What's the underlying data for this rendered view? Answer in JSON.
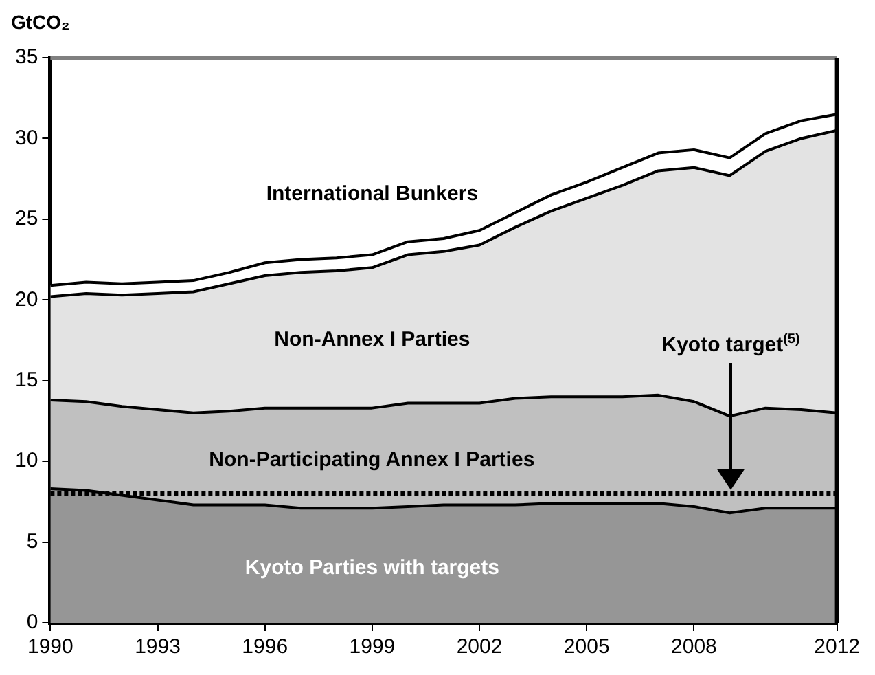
{
  "chart_data": {
    "type": "area",
    "stacked": true,
    "ylabel": "GtCO₂",
    "x": [
      1990,
      1991,
      1992,
      1993,
      1994,
      1995,
      1996,
      1997,
      1998,
      1999,
      2000,
      2001,
      2002,
      2003,
      2004,
      2005,
      2006,
      2007,
      2008,
      2009,
      2010,
      2011,
      2012
    ],
    "xlim": [
      1990,
      2012
    ],
    "xticks": [
      1990,
      1993,
      1996,
      1999,
      2002,
      2005,
      2008,
      2012
    ],
    "ylim": [
      0,
      35
    ],
    "yticks": [
      0,
      5,
      10,
      15,
      20,
      25,
      30,
      35
    ],
    "grid": false,
    "legend": false,
    "marker": "none",
    "series": [
      {
        "name": "Kyoto Parties with targets",
        "color": "#969696",
        "values": [
          8.3,
          8.2,
          7.9,
          7.6,
          7.3,
          7.3,
          7.3,
          7.1,
          7.1,
          7.1,
          7.2,
          7.3,
          7.3,
          7.3,
          7.4,
          7.4,
          7.4,
          7.4,
          7.2,
          6.8,
          7.1,
          7.1,
          7.1
        ]
      },
      {
        "name": "Non-Participating Annex I Parties",
        "color": "#c0c0c0",
        "values": [
          5.5,
          5.5,
          5.5,
          5.6,
          5.7,
          5.8,
          6.0,
          6.2,
          6.2,
          6.2,
          6.4,
          6.3,
          6.3,
          6.6,
          6.6,
          6.6,
          6.6,
          6.7,
          6.5,
          6.0,
          6.2,
          6.1,
          5.9
        ]
      },
      {
        "name": "Non-Annex I Parties",
        "color": "#e3e3e3",
        "values": [
          6.4,
          6.7,
          6.9,
          7.2,
          7.5,
          7.9,
          8.2,
          8.4,
          8.5,
          8.7,
          9.2,
          9.4,
          9.8,
          10.6,
          11.5,
          12.3,
          13.1,
          13.9,
          14.5,
          14.9,
          15.9,
          16.8,
          17.5
        ]
      },
      {
        "name": "International Bunkers",
        "color": "#ffffff",
        "values": [
          0.7,
          0.7,
          0.7,
          0.7,
          0.7,
          0.7,
          0.8,
          0.8,
          0.8,
          0.8,
          0.8,
          0.8,
          0.9,
          0.9,
          1.0,
          1.0,
          1.1,
          1.1,
          1.1,
          1.1,
          1.1,
          1.1,
          1.0
        ]
      }
    ],
    "ref_lines": [
      {
        "axis": "y",
        "value": 8,
        "line_style": "dotted",
        "color": "#000000"
      }
    ],
    "annotations": [
      "Kyoto target$^{(5)}$"
    ]
  }
}
